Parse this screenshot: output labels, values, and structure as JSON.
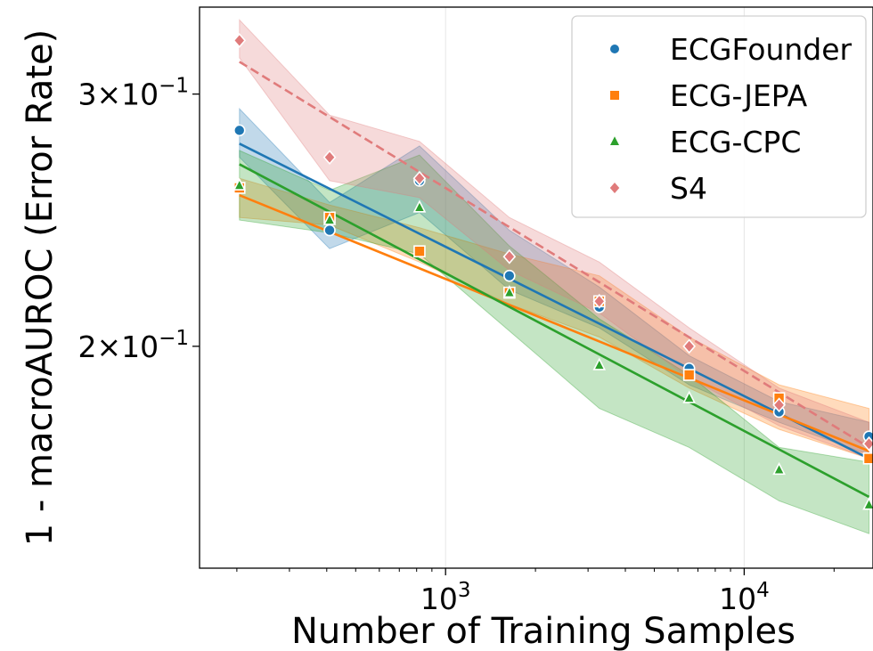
{
  "chart_data": {
    "type": "scatter",
    "xlabel": "Number of Training Samples",
    "ylabel": "1 - macroAUROC (Error Rate)",
    "x_scale": "log",
    "y_scale": "log",
    "xlim": [
      150,
      27000
    ],
    "ylim": [
      0.14,
      0.345
    ],
    "x_ticks": [
      {
        "value": 1000,
        "base": "10",
        "exp": "3"
      },
      {
        "value": 10000,
        "base": "10",
        "exp": "4"
      }
    ],
    "y_ticks": [
      {
        "value": 0.2,
        "mant": "2",
        "base": "10",
        "exp": "−1"
      },
      {
        "value": 0.3,
        "mant": "3",
        "base": "10",
        "exp": "−1"
      }
    ],
    "x_grid": [
      1000,
      10000
    ],
    "legend_position": "upper right",
    "x": [
      204,
      409,
      818,
      1636,
      3272,
      6544,
      13088,
      26176
    ],
    "series": [
      {
        "name": "ECGFounder",
        "color": "#1f77b4",
        "marker": "circle",
        "line_style": "solid",
        "values": [
          0.283,
          0.241,
          0.261,
          0.224,
          0.213,
          0.193,
          0.18,
          0.173
        ],
        "band_upper": [
          0.293,
          0.252,
          0.276,
          0.241,
          0.22,
          0.197,
          0.183,
          0.177
        ],
        "band_lower": [
          0.271,
          0.234,
          0.248,
          0.219,
          0.206,
          0.188,
          0.177,
          0.168
        ],
        "fit": [
          0.277,
          0.167
        ]
      },
      {
        "name": "ECG-JEPA",
        "color": "#ff7f0e",
        "marker": "square",
        "line_style": "solid",
        "values": [
          0.258,
          0.246,
          0.233,
          0.218,
          0.215,
          0.191,
          0.184,
          0.167
        ],
        "band_upper": [
          0.262,
          0.251,
          0.242,
          0.232,
          0.224,
          0.203,
          0.188,
          0.181
        ],
        "band_lower": [
          0.246,
          0.243,
          0.229,
          0.214,
          0.203,
          0.187,
          0.175,
          0.167
        ],
        "fit": [
          0.255,
          0.169
        ]
      },
      {
        "name": "ECG-CPC",
        "color": "#2ca02c",
        "marker": "triangle",
        "line_style": "solid",
        "values": [
          0.259,
          0.245,
          0.25,
          0.218,
          0.194,
          0.184,
          0.164,
          0.155
        ],
        "band_upper": [
          0.274,
          0.257,
          0.272,
          0.235,
          0.209,
          0.191,
          0.17,
          0.166
        ],
        "band_lower": [
          0.245,
          0.24,
          0.232,
          0.205,
          0.181,
          0.17,
          0.156,
          0.148
        ],
        "fit": [
          0.268,
          0.157
        ]
      },
      {
        "name": "S4",
        "color": "#e07b7b",
        "marker": "diamond",
        "line_style": "dashed",
        "values": [
          0.327,
          0.271,
          0.262,
          0.231,
          0.215,
          0.2,
          0.182,
          0.171
        ],
        "band_upper": [
          0.338,
          0.29,
          0.278,
          0.246,
          0.229,
          0.206,
          0.187,
          0.177
        ],
        "band_lower": [
          0.318,
          0.261,
          0.254,
          0.226,
          0.211,
          0.19,
          0.176,
          0.167
        ],
        "fit": [
          0.316,
          0.17
        ]
      }
    ]
  }
}
